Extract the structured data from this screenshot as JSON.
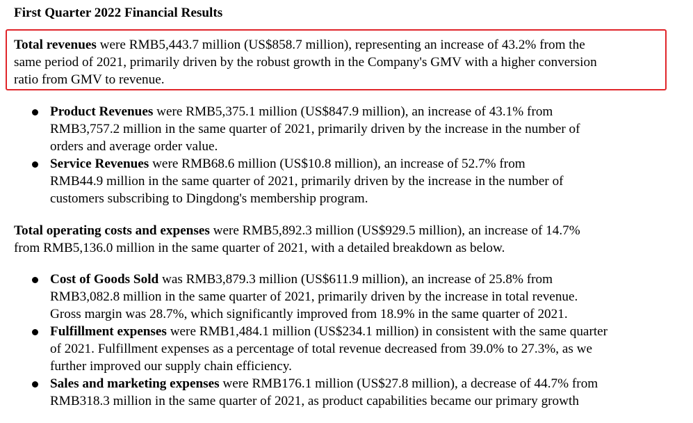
{
  "title": "First Quarter 2022 Financial Results",
  "highlight": {
    "bold": "Total revenues",
    "lines": [
      " were RMB5,443.7 million (US$858.7 million), representing an increase of 43.2% from the",
      "same period of 2021, primarily driven by the robust growth in the Company's GMV with a higher conversion",
      "ratio from GMV to revenue."
    ]
  },
  "revenue_items": [
    {
      "bold": "Product Revenues",
      "lines": [
        " were RMB5,375.1 million (US$847.9 million), an increase of 43.1% from",
        "RMB3,757.2 million in the same quarter of 2021, primarily driven by the increase in the number of",
        "orders and average order value."
      ]
    },
    {
      "bold": "Service Revenues",
      "lines": [
        " were RMB68.6 million (US$10.8 million), an increase of 52.7% from",
        "RMB44.9 million in the same quarter of 2021, primarily driven by the increase in the number of",
        "customers subscribing to Dingdong's membership program."
      ]
    }
  ],
  "costs": {
    "bold": "Total operating costs and expenses",
    "lines": [
      " were RMB5,892.3 million (US$929.5 million), an increase of 14.7%",
      "from RMB5,136.0 million in the same quarter of 2021, with a detailed breakdown as below."
    ]
  },
  "cost_items": [
    {
      "bold": "Cost of Goods Sold",
      "lines": [
        " was RMB3,879.3 million (US$611.9 million), an increase of 25.8% from",
        "RMB3,082.8 million in the same quarter of 2021, primarily driven by the increase in total revenue.",
        "Gross margin was 28.7%, which significantly improved from 18.9% in the same quarter of 2021."
      ]
    },
    {
      "bold": "Fulfillment expenses",
      "lines": [
        " were RMB1,484.1 million (US$234.1 million) in consistent with the same quarter",
        "of 2021.  Fulfillment expenses as a percentage of total revenue decreased from 39.0% to 27.3%, as we",
        "further improved our supply chain efficiency."
      ]
    },
    {
      "bold": "Sales and marketing expenses",
      "lines": [
        " were RMB176.1 million (US$27.8 million), a decrease of 44.7% from",
        "RMB318.3 million in the same quarter of 2021, as product capabilities became our primary growth"
      ]
    }
  ],
  "colors": {
    "highlight_border": "#e0252a",
    "text": "#000000"
  }
}
